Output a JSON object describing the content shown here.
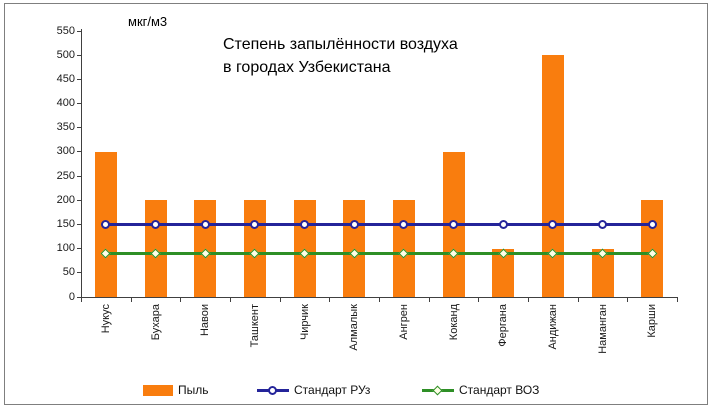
{
  "window": {
    "background": "#ffffff",
    "frame_border_color": "#7f7f7f"
  },
  "chart_data": {
    "type": "bar",
    "title": "Степень запылённости воздуха в городах Узбекистана",
    "title_lines": [
      "Степень запылённости воздуха",
      "в городах Узбекистана"
    ],
    "unit_label": "мкг/м3",
    "categories": [
      "Нукус",
      "Бухара",
      "Навои",
      "Ташкент",
      "Чирчик",
      "Алмалык",
      "Ангрен",
      "Коканд",
      "Фергана",
      "Андижан",
      "Наманган",
      "Карши"
    ],
    "series": [
      {
        "name": "Пыль",
        "type": "bar",
        "color": "#F97D0E",
        "values": [
          300,
          200,
          200,
          200,
          200,
          200,
          200,
          300,
          100,
          500,
          100,
          200
        ]
      },
      {
        "name": "Стандарт РУз",
        "type": "line",
        "color": "#24249A",
        "marker": "circle",
        "marker_fill": "#ffffff",
        "values": [
          150,
          150,
          150,
          150,
          150,
          150,
          150,
          150,
          150,
          150,
          150,
          150
        ]
      },
      {
        "name": "Стандарт ВОЗ",
        "type": "line",
        "color": "#2E8F26",
        "marker": "diamond",
        "marker_fill": "#FFFFE8",
        "values": [
          90,
          90,
          90,
          90,
          90,
          90,
          90,
          90,
          90,
          90,
          90,
          90
        ]
      }
    ],
    "ylim": [
      0,
      550
    ],
    "yticks": [
      0,
      50,
      100,
      150,
      200,
      250,
      300,
      350,
      400,
      450,
      500,
      550
    ],
    "grid": false,
    "legend_position": "bottom"
  }
}
